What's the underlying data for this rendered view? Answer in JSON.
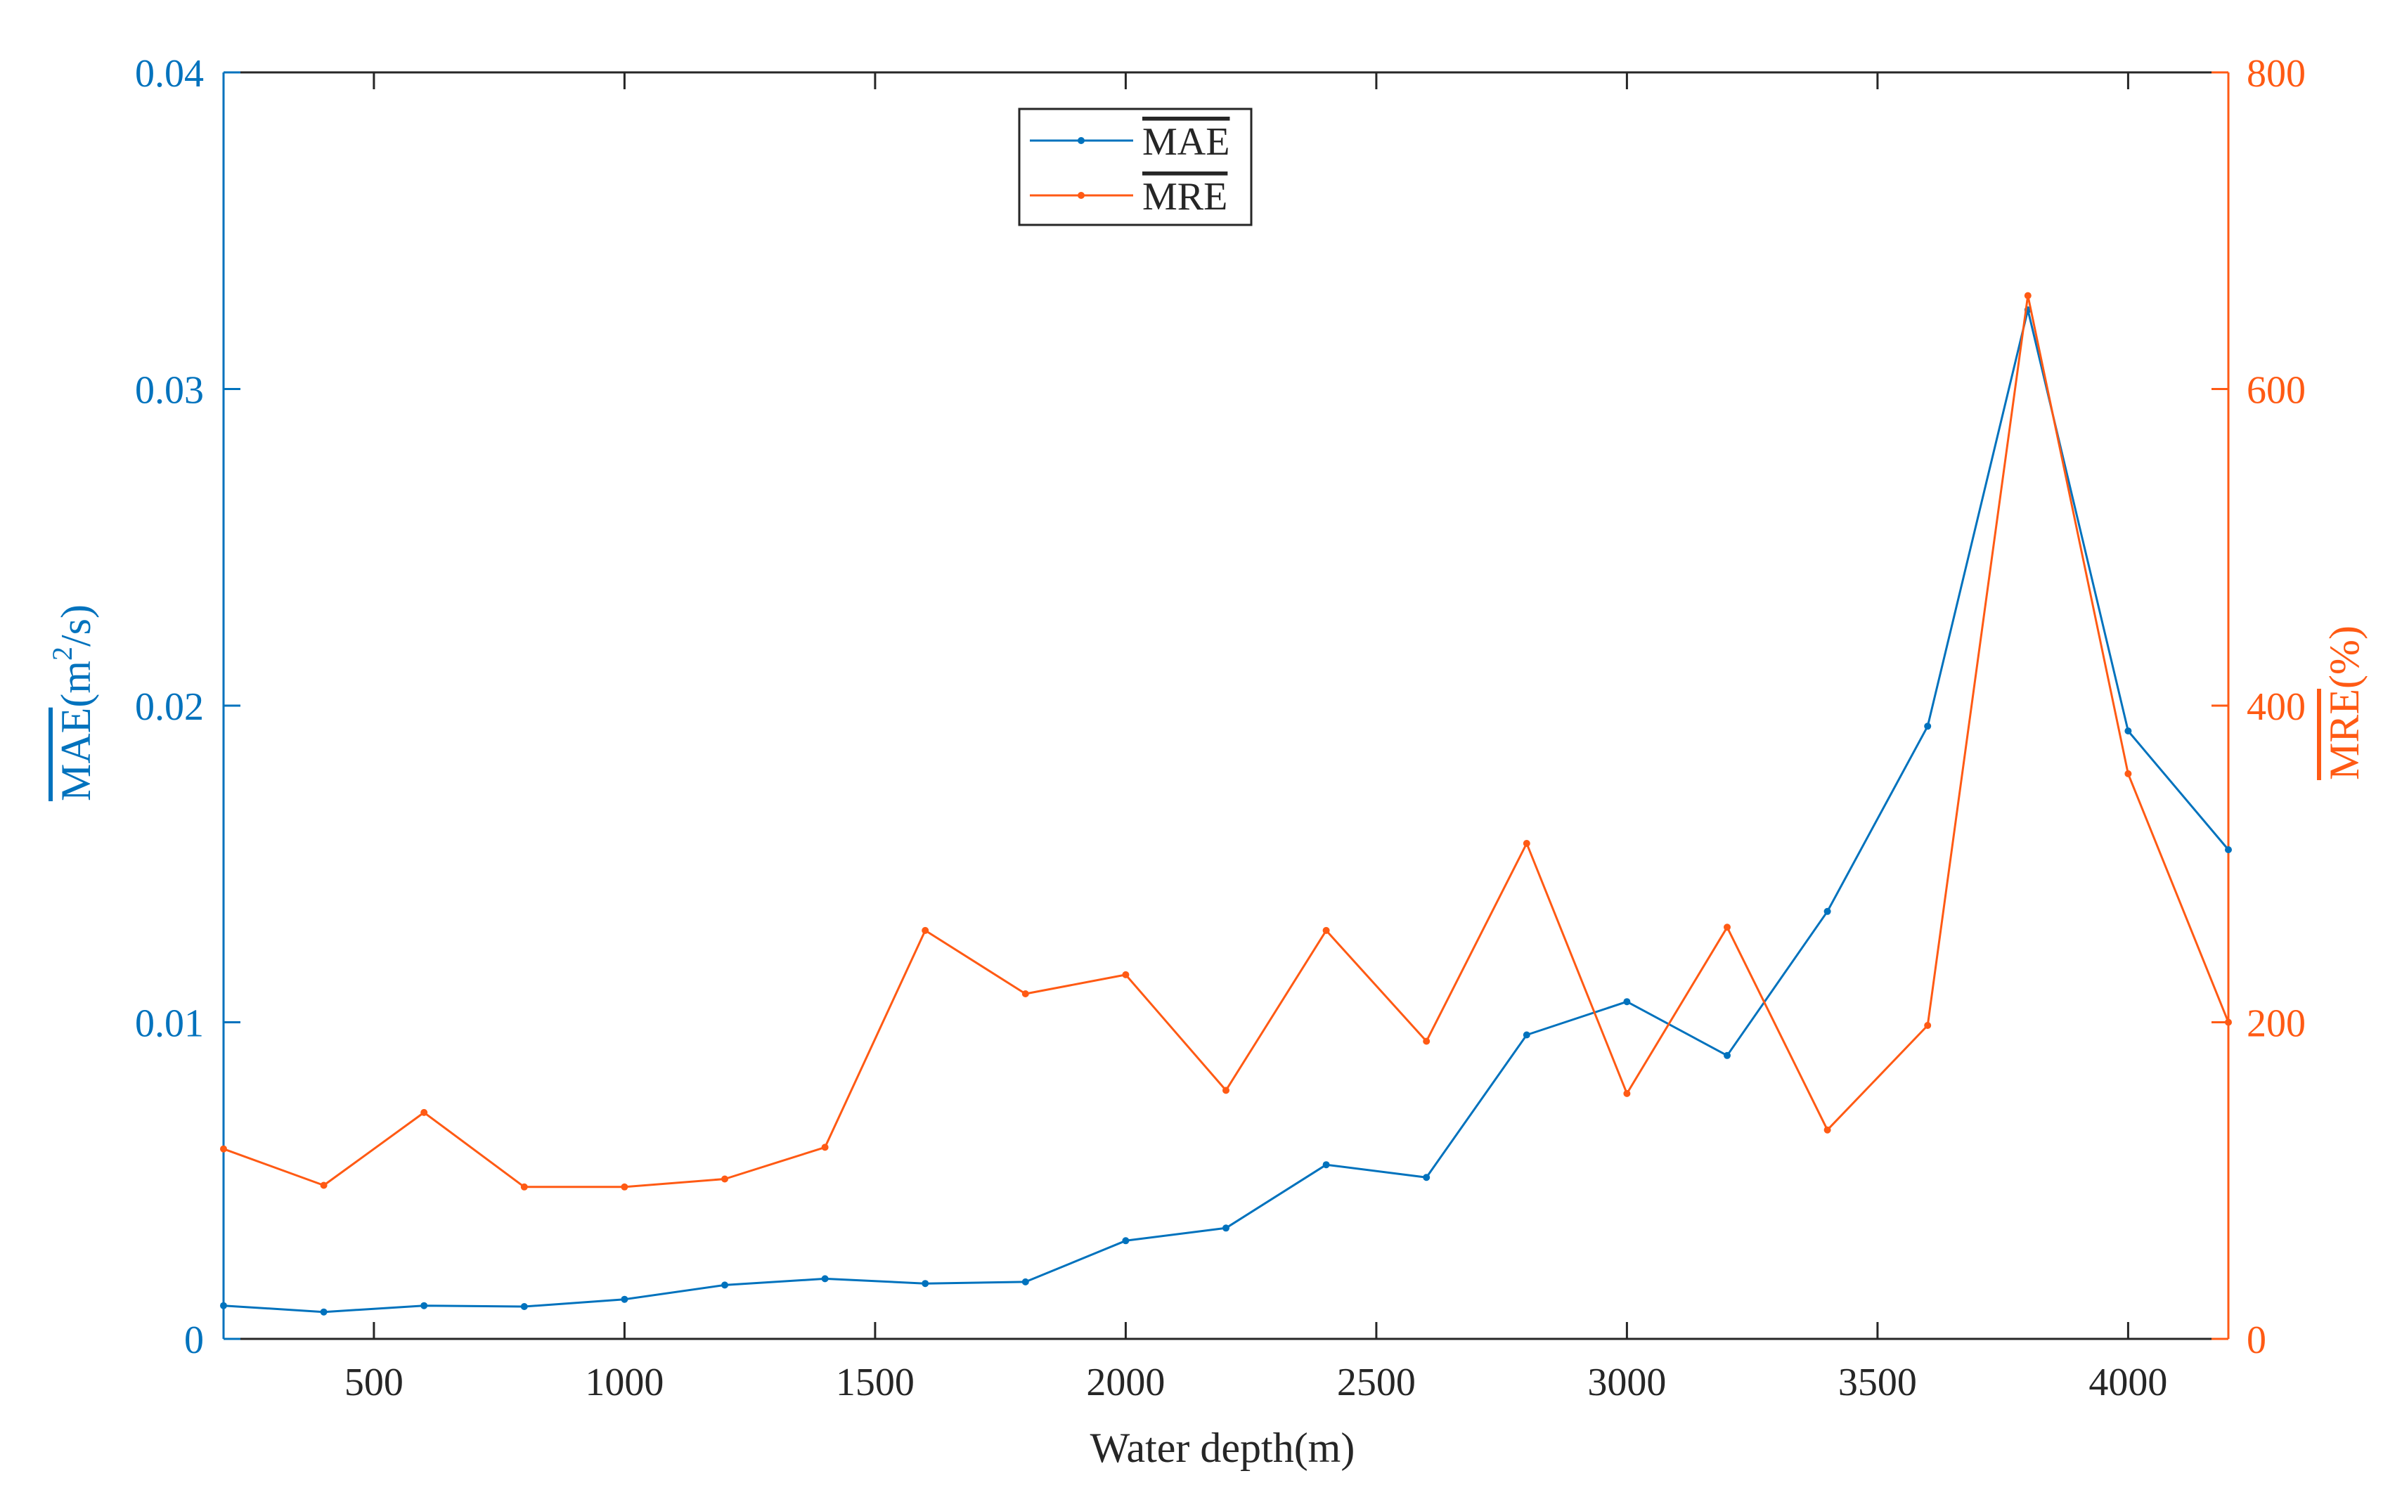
{
  "chart_data": {
    "type": "line",
    "x": [
      200,
      400,
      600,
      800,
      1000,
      1200,
      1400,
      1600,
      1800,
      2000,
      2200,
      2400,
      2600,
      2800,
      3000,
      3200,
      3400,
      3600,
      3800,
      4000,
      4200
    ],
    "xlabel": "Water depth(m)",
    "xlim": [
      200,
      4200
    ],
    "xticks": [
      500,
      1000,
      1500,
      2000,
      2500,
      3000,
      3500,
      4000
    ],
    "xtick_labels": [
      "500",
      "1000",
      "1500",
      "2000",
      "2500",
      "3000",
      "3500",
      "4000"
    ],
    "y_left": {
      "label_main": "MAE",
      "label_unit_prefix": "(m",
      "label_sup": "2",
      "label_unit_suffix": "/s)",
      "lim": [
        0,
        0.04
      ],
      "ticks": [
        0,
        0.01,
        0.02,
        0.03,
        0.04
      ],
      "tick_labels": [
        "0",
        "0.01",
        "0.02",
        "0.03",
        "0.04"
      ],
      "color": "#0072BD"
    },
    "y_right": {
      "label_main": "MRE",
      "label_unit": "(%)",
      "lim": [
        0,
        800
      ],
      "ticks": [
        0,
        200,
        400,
        600,
        800
      ],
      "tick_labels": [
        "0",
        "200",
        "400",
        "600",
        "800"
      ],
      "color": "#FF5A14"
    },
    "series": [
      {
        "name": "MAE",
        "axis": "left",
        "color": "#0072BD",
        "values": [
          0.00105,
          0.00085,
          0.00105,
          0.00102,
          0.00125,
          0.0017,
          0.0019,
          0.00175,
          0.0018,
          0.0031,
          0.0035,
          0.0055,
          0.0051,
          0.0096,
          0.01065,
          0.00895,
          0.0135,
          0.01935,
          0.0325,
          0.0192,
          0.01545
        ]
      },
      {
        "name": "MRE",
        "axis": "right",
        "color": "#FF5A14",
        "values": [
          120,
          97,
          143,
          96,
          96,
          101,
          121,
          258,
          218,
          230,
          157,
          258,
          188,
          313,
          155,
          260,
          132,
          198,
          659,
          357,
          200
        ]
      }
    ],
    "legend": {
      "position": "top-center"
    },
    "grid": false
  }
}
